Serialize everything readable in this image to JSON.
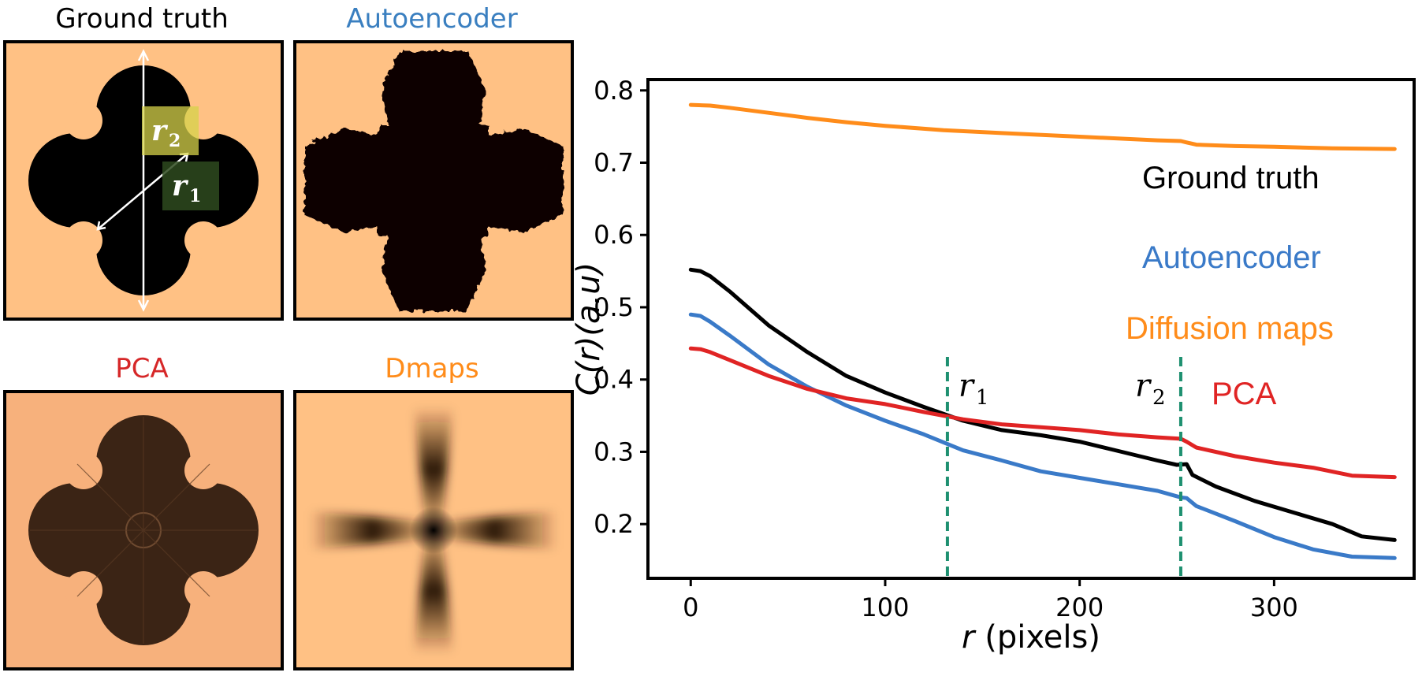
{
  "panels": [
    {
      "title": "Ground truth",
      "title_color": "#000000"
    },
    {
      "title": "Autoencoder",
      "title_color": "#3a7fc0"
    },
    {
      "title": "PCA",
      "title_color": "#d62728"
    },
    {
      "title": "Dmaps",
      "title_color": "#ff8c1a"
    }
  ],
  "annotations": {
    "r1": {
      "base": "r",
      "sub": "1"
    },
    "r2": {
      "base": "r",
      "sub": "2"
    }
  },
  "colors": {
    "background": "#ffc184",
    "shape": "#000000",
    "pca_shape": "#3b2415",
    "pca_background": "#f7b17c",
    "ground_truth": "#000000",
    "autoencoder": "#3a7ac8",
    "diffusion": "#ff8c1a",
    "pca": "#e02424",
    "marker": "#1e9070"
  },
  "chart_data": {
    "type": "line",
    "xlabel_italic": "r",
    "xlabel_rest": " (pixels)",
    "ylabel": "C(r)(a.u)",
    "xlim": [
      -22,
      372
    ],
    "ylim": [
      0.125,
      0.815
    ],
    "xticks": [
      0,
      100,
      200,
      300
    ],
    "yticks": [
      0.2,
      0.3,
      0.4,
      0.5,
      0.6,
      0.7,
      0.8
    ],
    "ytick_labels": [
      "0.2",
      "0.3",
      "0.4",
      "0.5",
      "0.6",
      "0.7",
      "0.8"
    ],
    "vlines": [
      {
        "x": 132,
        "label_base": "r",
        "label_sub": "1",
        "label_side": "right"
      },
      {
        "x": 252,
        "label_base": "r",
        "label_sub": "2",
        "label_side": "left"
      }
    ],
    "series": [
      {
        "name": "Diffusion maps",
        "color_key": "diffusion",
        "x": [
          0,
          10,
          20,
          40,
          60,
          80,
          100,
          130,
          160,
          200,
          240,
          252,
          255,
          260,
          280,
          300,
          330,
          362
        ],
        "y": [
          0.78,
          0.779,
          0.776,
          0.769,
          0.762,
          0.756,
          0.751,
          0.745,
          0.741,
          0.736,
          0.731,
          0.73,
          0.728,
          0.725,
          0.723,
          0.722,
          0.72,
          0.719
        ]
      },
      {
        "name": "Ground truth",
        "color_key": "ground_truth",
        "x": [
          0,
          5,
          10,
          20,
          40,
          60,
          80,
          100,
          120,
          140,
          160,
          180,
          200,
          220,
          240,
          250,
          255,
          258,
          270,
          290,
          310,
          330,
          345,
          362
        ],
        "y": [
          0.552,
          0.55,
          0.543,
          0.522,
          0.475,
          0.438,
          0.405,
          0.382,
          0.362,
          0.343,
          0.33,
          0.323,
          0.314,
          0.301,
          0.288,
          0.282,
          0.283,
          0.268,
          0.252,
          0.232,
          0.216,
          0.2,
          0.183,
          0.178
        ]
      },
      {
        "name": "Autoencoder",
        "color_key": "autoencoder",
        "x": [
          0,
          5,
          10,
          20,
          40,
          60,
          80,
          100,
          120,
          140,
          160,
          180,
          200,
          220,
          240,
          252,
          255,
          260,
          280,
          300,
          320,
          340,
          362
        ],
        "y": [
          0.49,
          0.488,
          0.48,
          0.461,
          0.421,
          0.39,
          0.364,
          0.343,
          0.324,
          0.302,
          0.288,
          0.273,
          0.264,
          0.255,
          0.246,
          0.237,
          0.236,
          0.225,
          0.204,
          0.182,
          0.165,
          0.155,
          0.153
        ]
      },
      {
        "name": "PCA",
        "color_key": "pca",
        "x": [
          0,
          5,
          10,
          20,
          40,
          60,
          80,
          100,
          120,
          140,
          160,
          180,
          200,
          220,
          240,
          252,
          255,
          260,
          280,
          300,
          320,
          340,
          362
        ],
        "y": [
          0.443,
          0.442,
          0.438,
          0.427,
          0.405,
          0.387,
          0.374,
          0.366,
          0.355,
          0.345,
          0.338,
          0.334,
          0.33,
          0.324,
          0.32,
          0.318,
          0.314,
          0.306,
          0.294,
          0.285,
          0.278,
          0.267,
          0.265
        ]
      }
    ],
    "legend": [
      {
        "text": "Ground truth",
        "color_key": "ground_truth"
      },
      {
        "text": "Autoencoder",
        "color_key": "autoencoder"
      },
      {
        "text": "Diffusion maps",
        "color_key": "diffusion"
      },
      {
        "text": "PCA",
        "color_key": "pca"
      }
    ]
  }
}
